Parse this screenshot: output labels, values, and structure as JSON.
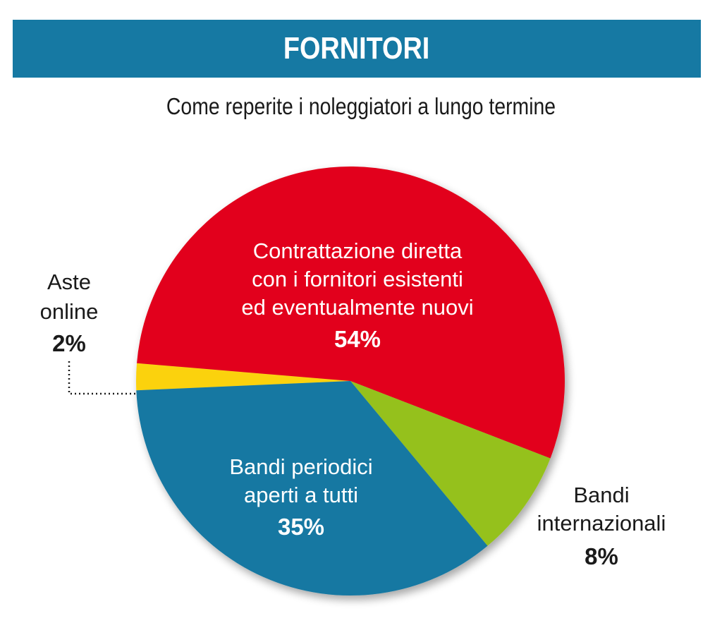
{
  "header": {
    "title": "FORNITORI",
    "subtitle": "Come reperite i noleggiatori a lungo termine"
  },
  "colors": {
    "banner": "#1679a3",
    "red": "#e2001a",
    "green": "#95c11f",
    "blue": "#1678a2",
    "yellow": "#fbd20c"
  },
  "chart_data": {
    "type": "pie",
    "slices": [
      {
        "key": "contrattazione",
        "label_lines": [
          "Contrattazione diretta",
          "con i fornitori esistenti",
          "ed eventualmente nuovi"
        ],
        "value": 54,
        "value_label": "54%",
        "color": "#e2001a"
      },
      {
        "key": "internazionali",
        "label_lines": [
          "Bandi",
          "internazionali"
        ],
        "value": 8,
        "value_label": "8%",
        "color": "#95c11f"
      },
      {
        "key": "periodici",
        "label_lines": [
          "Bandi periodici",
          "aperti a tutti"
        ],
        "value": 35,
        "value_label": "35%",
        "color": "#1678a2"
      },
      {
        "key": "aste",
        "label_lines": [
          "Aste",
          "online"
        ],
        "value": 2,
        "value_label": "2%",
        "color": "#fbd20c"
      }
    ],
    "title": "FORNITORI",
    "subtitle": "Come reperite i noleggiatori a lungo termine"
  }
}
